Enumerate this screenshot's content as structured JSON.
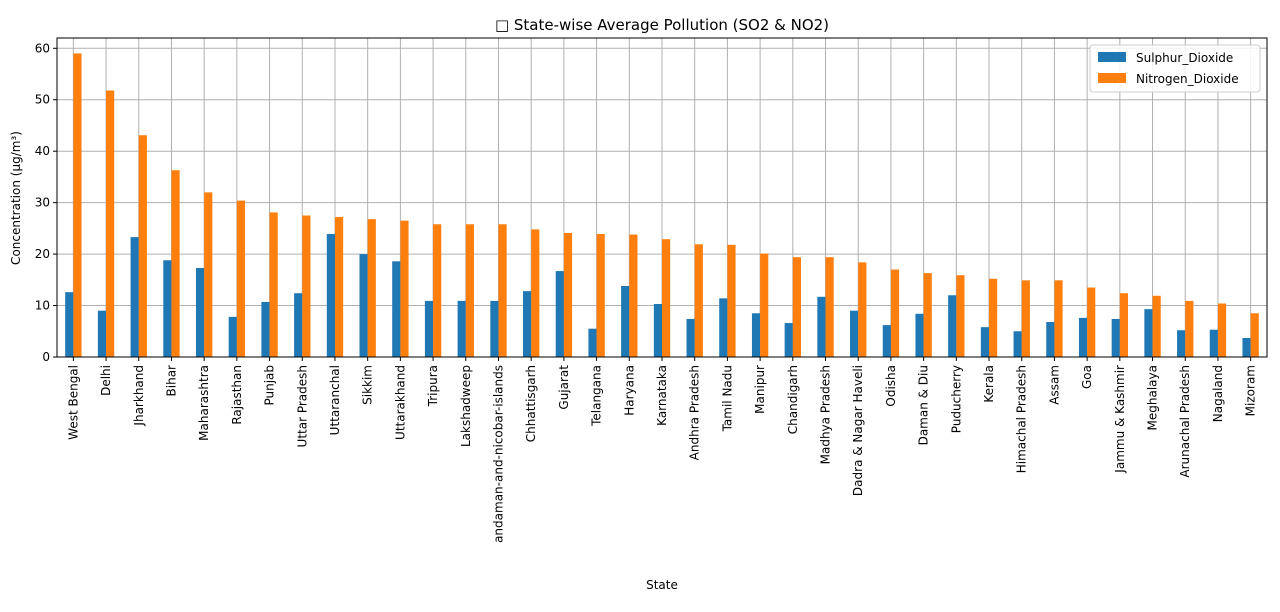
{
  "chart_data": {
    "type": "bar",
    "title": "□ State-wise Average Pollution (SO2 & NO2)",
    "xlabel": "State",
    "ylabel": "Concentration (µg/m³)",
    "ylim": [
      0,
      62
    ],
    "yticks": [
      0,
      10,
      20,
      30,
      40,
      50,
      60
    ],
    "grid": true,
    "legend_position": "top-right",
    "categories": [
      "West Bengal",
      "Delhi",
      "Jharkhand",
      "Bihar",
      "Maharashtra",
      "Rajasthan",
      "Punjab",
      "Uttar Pradesh",
      "Uttaranchal",
      "Sikkim",
      "Uttarakhand",
      "Tripura",
      "Lakshadweep",
      "andaman-and-nicobar-islands",
      "Chhattisgarh",
      "Gujarat",
      "Telangana",
      "Haryana",
      "Karnataka",
      "Andhra Pradesh",
      "Tamil Nadu",
      "Manipur",
      "Chandigarh",
      "Madhya Pradesh",
      "Dadra & Nagar Haveli",
      "Odisha",
      "Daman & Diu",
      "Puducherry",
      "Kerala",
      "Himachal Pradesh",
      "Assam",
      "Goa",
      "Jammu & Kashmir",
      "Meghalaya",
      "Arunachal Pradesh",
      "Nagaland",
      "Mizoram"
    ],
    "series": [
      {
        "name": "Sulphur_Dioxide",
        "color": "#1f77b4",
        "values": [
          12.6,
          9.0,
          23.3,
          18.8,
          17.3,
          7.8,
          10.7,
          12.4,
          23.9,
          20.0,
          18.6,
          10.9,
          10.9,
          10.9,
          12.8,
          16.7,
          5.5,
          13.8,
          10.3,
          7.4,
          11.4,
          8.5,
          6.6,
          11.7,
          9.0,
          6.2,
          8.4,
          12.0,
          5.8,
          5.0,
          6.8,
          7.6,
          7.4,
          9.3,
          5.2,
          5.3,
          3.7
        ]
      },
      {
        "name": "Nitrogen_Dioxide",
        "color": "#ff7f0e",
        "values": [
          59.0,
          51.8,
          43.1,
          36.3,
          32.0,
          30.4,
          28.1,
          27.5,
          27.2,
          26.8,
          26.5,
          25.8,
          25.8,
          25.8,
          24.8,
          24.1,
          23.9,
          23.8,
          22.9,
          21.9,
          21.8,
          20.1,
          19.4,
          19.4,
          18.4,
          17.0,
          16.3,
          15.9,
          15.2,
          14.9,
          14.9,
          13.5,
          12.4,
          11.9,
          10.9,
          10.4,
          8.5
        ]
      }
    ]
  }
}
